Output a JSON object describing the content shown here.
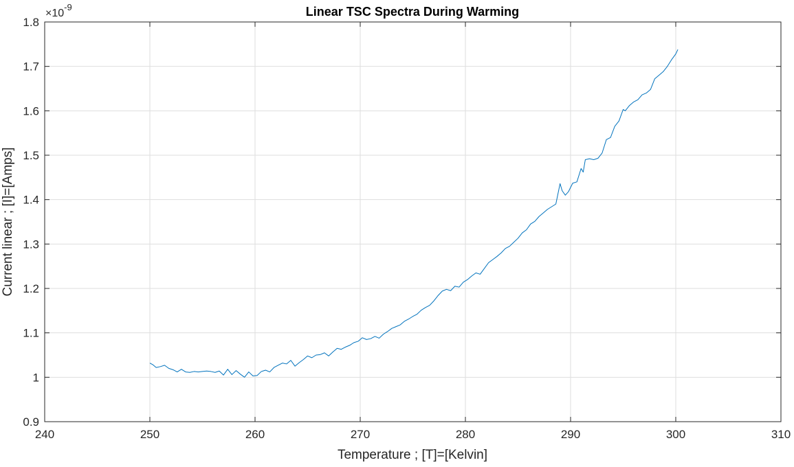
{
  "chart_data": {
    "type": "line",
    "title": "Linear TSC Spectra During Warming",
    "xlabel": "Temperature ; [T]=[Kelvin]",
    "ylabel": "Current linear ; [I]=[Amps]",
    "exponent_label": "×10",
    "exponent_power": "-9",
    "xlim": [
      240,
      310
    ],
    "ylim": [
      0.9,
      1.8
    ],
    "y_scale_factor": 1e-09,
    "grid": true,
    "xticks": [
      240,
      250,
      260,
      270,
      280,
      290,
      300,
      310
    ],
    "xtick_labels": [
      "240",
      "250",
      "260",
      "270",
      "280",
      "290",
      "300",
      "310"
    ],
    "yticks": [
      0.9,
      1.0,
      1.1,
      1.2,
      1.3,
      1.4,
      1.5,
      1.6,
      1.7,
      1.8
    ],
    "ytick_labels": [
      "0.9",
      "1",
      "1.1",
      "1.2",
      "1.3",
      "1.4",
      "1.5",
      "1.6",
      "1.7",
      "1.8"
    ],
    "series": [
      {
        "color": "#0072BD",
        "x": [
          250.0,
          250.3,
          250.6,
          251.0,
          251.4,
          251.8,
          252.2,
          252.6,
          253.0,
          253.4,
          253.8,
          254.2,
          254.6,
          255.0,
          255.4,
          255.8,
          256.2,
          256.6,
          257.0,
          257.4,
          257.8,
          258.2,
          258.6,
          259.0,
          259.4,
          259.8,
          260.2,
          260.6,
          261.0,
          261.4,
          261.8,
          262.2,
          262.6,
          263.0,
          263.4,
          263.8,
          264.2,
          264.6,
          265.0,
          265.4,
          265.8,
          266.2,
          266.6,
          267.0,
          267.4,
          267.8,
          268.2,
          268.6,
          269.0,
          269.4,
          269.8,
          270.2,
          270.6,
          271.0,
          271.4,
          271.8,
          272.2,
          272.6,
          273.0,
          273.4,
          273.8,
          274.2,
          274.6,
          275.0,
          275.4,
          275.8,
          276.2,
          276.6,
          277.0,
          277.4,
          277.8,
          278.2,
          278.6,
          279.0,
          279.4,
          279.8,
          280.2,
          280.6,
          281.0,
          281.4,
          281.8,
          282.2,
          282.6,
          283.0,
          283.4,
          283.8,
          284.2,
          284.6,
          285.0,
          285.4,
          285.8,
          286.2,
          286.6,
          287.0,
          287.4,
          287.8,
          288.2,
          288.6,
          289.0,
          289.2,
          289.5,
          289.8,
          290.2,
          290.6,
          291.0,
          291.2,
          291.4,
          291.8,
          292.2,
          292.6,
          293.0,
          293.4,
          293.8,
          294.2,
          294.6,
          295.0,
          295.2,
          295.6,
          296.0,
          296.4,
          296.8,
          297.2,
          297.6,
          298.0,
          298.4,
          298.8,
          299.2,
          299.6,
          300.0,
          300.2
        ],
        "y": [
          1.032,
          1.028,
          1.022,
          1.024,
          1.027,
          1.02,
          1.017,
          1.012,
          1.018,
          1.012,
          1.011,
          1.013,
          1.012,
          1.013,
          1.014,
          1.013,
          1.011,
          1.014,
          1.005,
          1.018,
          1.006,
          1.015,
          1.007,
          1.0,
          1.012,
          1.003,
          1.004,
          1.013,
          1.016,
          1.012,
          1.022,
          1.027,
          1.032,
          1.03,
          1.038,
          1.025,
          1.033,
          1.04,
          1.048,
          1.044,
          1.05,
          1.051,
          1.055,
          1.048,
          1.057,
          1.065,
          1.063,
          1.068,
          1.072,
          1.078,
          1.081,
          1.089,
          1.085,
          1.087,
          1.092,
          1.088,
          1.097,
          1.103,
          1.11,
          1.114,
          1.118,
          1.126,
          1.131,
          1.137,
          1.142,
          1.151,
          1.157,
          1.162,
          1.172,
          1.184,
          1.194,
          1.198,
          1.195,
          1.205,
          1.203,
          1.214,
          1.22,
          1.228,
          1.235,
          1.232,
          1.245,
          1.258,
          1.265,
          1.272,
          1.28,
          1.29,
          1.295,
          1.304,
          1.313,
          1.325,
          1.332,
          1.345,
          1.351,
          1.362,
          1.37,
          1.378,
          1.384,
          1.39,
          1.436,
          1.42,
          1.41,
          1.418,
          1.437,
          1.44,
          1.47,
          1.462,
          1.49,
          1.492,
          1.49,
          1.493,
          1.505,
          1.535,
          1.54,
          1.565,
          1.577,
          1.603,
          1.6,
          1.612,
          1.62,
          1.625,
          1.636,
          1.64,
          1.648,
          1.672,
          1.68,
          1.688,
          1.7,
          1.715,
          1.728,
          1.738
        ]
      }
    ]
  }
}
